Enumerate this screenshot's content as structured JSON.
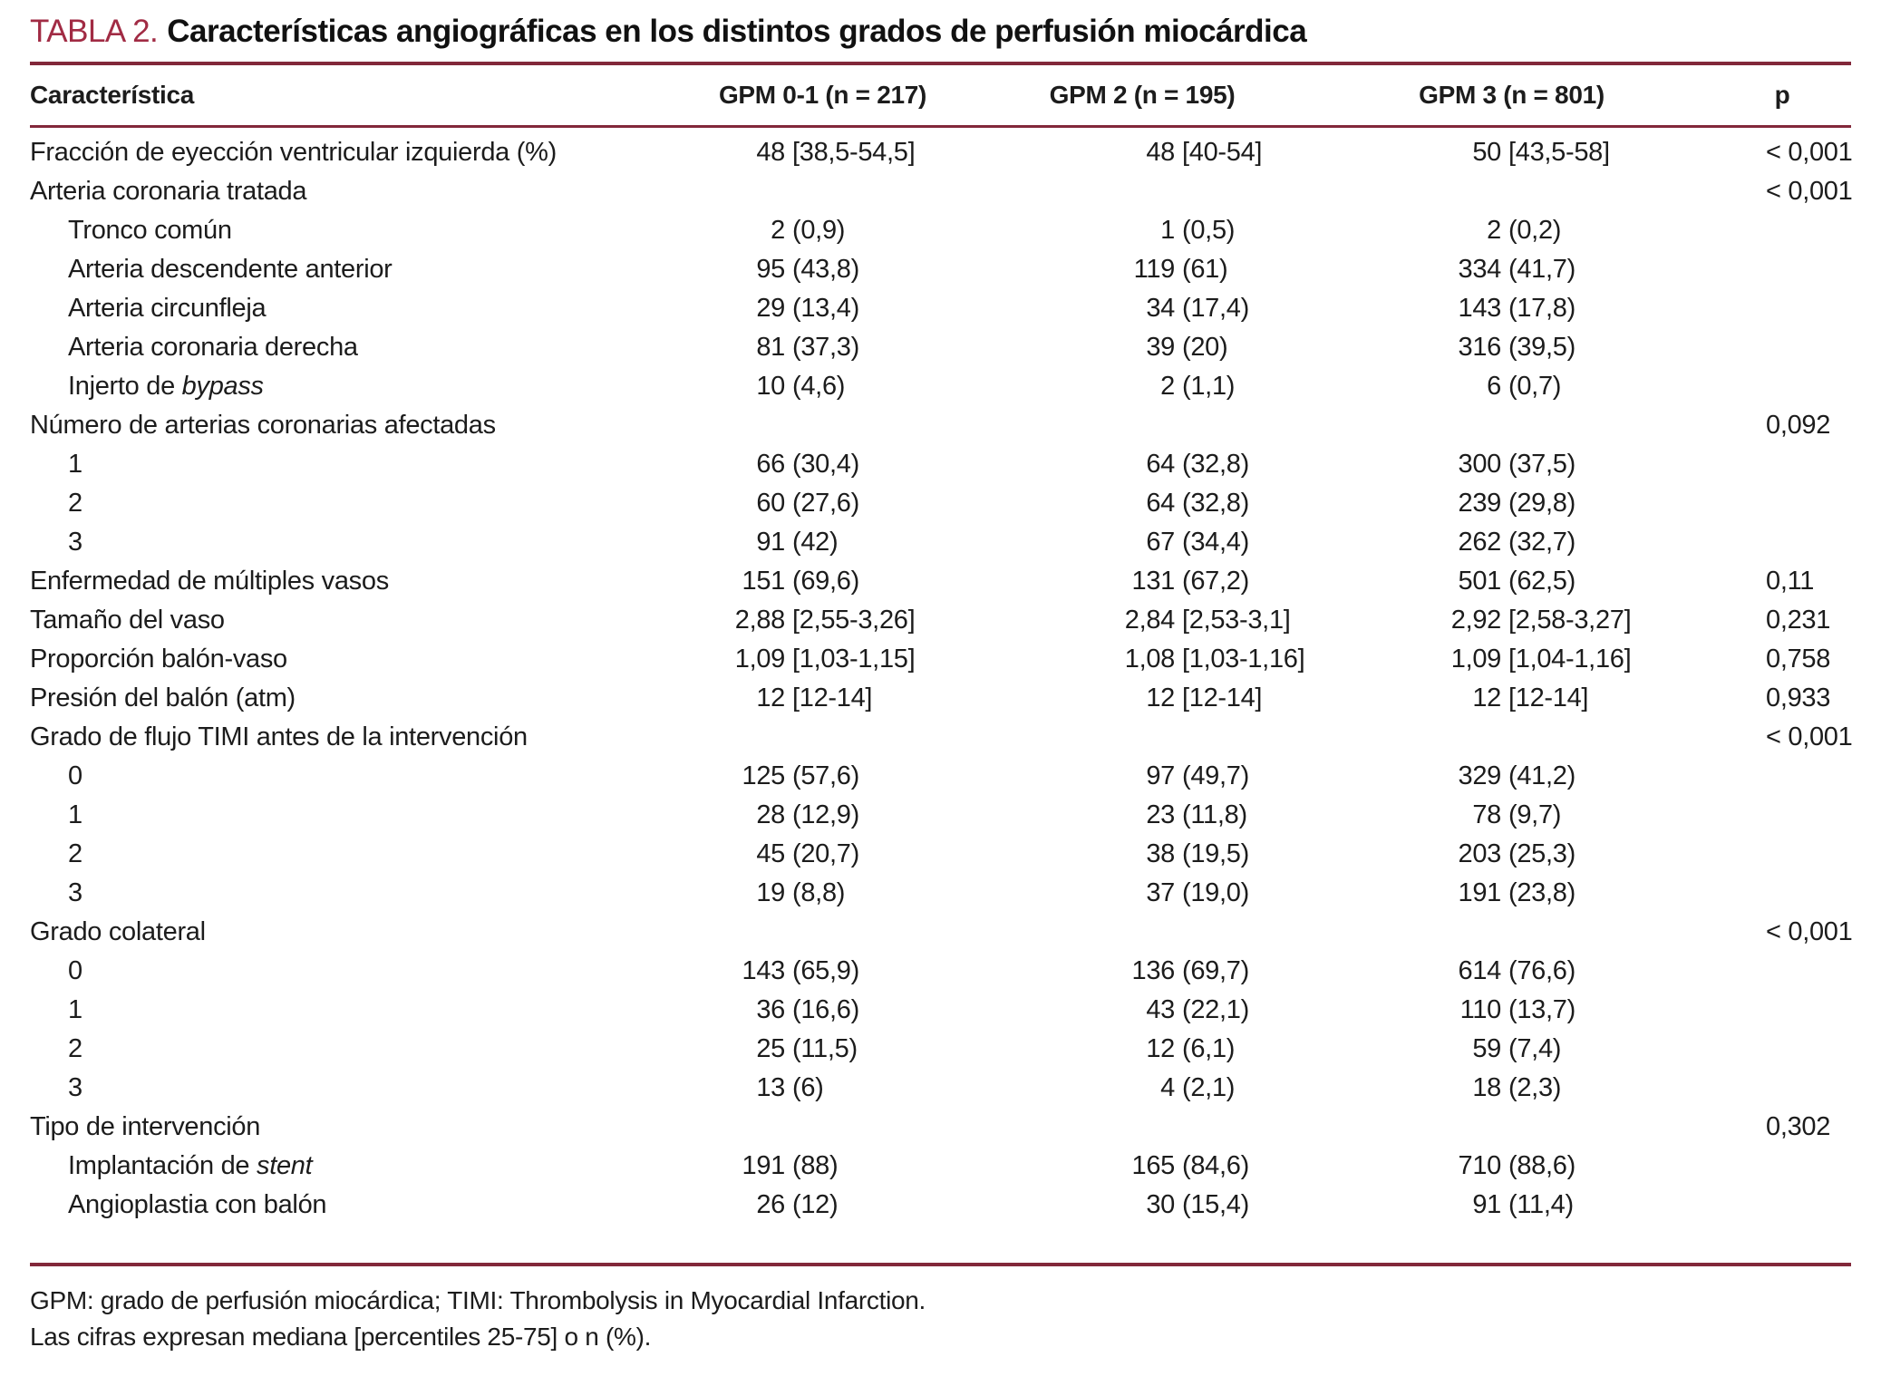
{
  "colors": {
    "accent": "#a12b44",
    "rule": "#82283a",
    "text": "#1c1c1c"
  },
  "title": {
    "tag": "TABLA 2.",
    "text": "Características angiográficas en los distintos grados de perfusión miocárdica"
  },
  "table": {
    "columns": [
      "Característica",
      "GPM 0-1 (n = 217)",
      "GPM 2 (n = 195)",
      "GPM 3 (n = 801)",
      "p"
    ],
    "rows": [
      {
        "label": "Fracción de eyección ventricular izquierda (%)",
        "indent": 0,
        "v1": [
          "48",
          "[38,5-54,5]"
        ],
        "v2": [
          "48",
          "[40-54]"
        ],
        "v3": [
          "50",
          "[43,5-58]"
        ],
        "p": "< 0,001"
      },
      {
        "label": "Arteria coronaria tratada",
        "indent": 0,
        "v1": null,
        "v2": null,
        "v3": null,
        "p": "< 0,001"
      },
      {
        "label": "Tronco común",
        "indent": 1,
        "v1": [
          "2",
          "(0,9)"
        ],
        "v2": [
          "1",
          "(0,5)"
        ],
        "v3": [
          "2",
          "(0,2)"
        ],
        "p": ""
      },
      {
        "label": "Arteria descendente anterior",
        "indent": 1,
        "v1": [
          "95",
          "(43,8)"
        ],
        "v2": [
          "119",
          "(61)"
        ],
        "v3": [
          "334",
          "(41,7)"
        ],
        "p": ""
      },
      {
        "label": "Arteria circunfleja",
        "indent": 1,
        "v1": [
          "29",
          "(13,4)"
        ],
        "v2": [
          "34",
          "(17,4)"
        ],
        "v3": [
          "143",
          "(17,8)"
        ],
        "p": ""
      },
      {
        "label": "Arteria coronaria derecha",
        "indent": 1,
        "v1": [
          "81",
          "(37,3)"
        ],
        "v2": [
          "39",
          "(20)"
        ],
        "v3": [
          "316",
          "(39,5)"
        ],
        "p": ""
      },
      {
        "label": "Injerto de ",
        "label_italic": "bypass",
        "indent": 1,
        "v1": [
          "10",
          "(4,6)"
        ],
        "v2": [
          "2",
          "(1,1)"
        ],
        "v3": [
          "6",
          "(0,7)"
        ],
        "p": ""
      },
      {
        "label": "Número de arterias coronarias afectadas",
        "indent": 0,
        "v1": null,
        "v2": null,
        "v3": null,
        "p": "0,092"
      },
      {
        "label": "1",
        "indent": 1,
        "v1": [
          "66",
          "(30,4)"
        ],
        "v2": [
          "64",
          "(32,8)"
        ],
        "v3": [
          "300",
          "(37,5)"
        ],
        "p": ""
      },
      {
        "label": "2",
        "indent": 1,
        "v1": [
          "60",
          "(27,6)"
        ],
        "v2": [
          "64",
          "(32,8)"
        ],
        "v3": [
          "239",
          "(29,8)"
        ],
        "p": ""
      },
      {
        "label": "3",
        "indent": 1,
        "v1": [
          "91",
          "(42)"
        ],
        "v2": [
          "67",
          "(34,4)"
        ],
        "v3": [
          "262",
          "(32,7)"
        ],
        "p": ""
      },
      {
        "label": "Enfermedad de múltiples vasos",
        "indent": 0,
        "v1": [
          "151",
          "(69,6)"
        ],
        "v2": [
          "131",
          "(67,2)"
        ],
        "v3": [
          "501",
          "(62,5)"
        ],
        "p": "0,11"
      },
      {
        "label": "Tamaño del vaso",
        "indent": 0,
        "v1": [
          "2,88",
          "[2,55-3,26]"
        ],
        "v2": [
          "2,84",
          "[2,53-3,1]"
        ],
        "v3": [
          "2,92",
          "[2,58-3,27]"
        ],
        "p": "0,231"
      },
      {
        "label": "Proporción balón-vaso",
        "indent": 0,
        "v1": [
          "1,09",
          "[1,03-1,15]"
        ],
        "v2": [
          "1,08",
          "[1,03-1,16]"
        ],
        "v3": [
          "1,09",
          "[1,04-1,16]"
        ],
        "p": "0,758"
      },
      {
        "label": "Presión del balón (atm)",
        "indent": 0,
        "v1": [
          "12",
          "[12-14]"
        ],
        "v2": [
          "12",
          "[12-14]"
        ],
        "v3": [
          "12",
          "[12-14]"
        ],
        "p": "0,933"
      },
      {
        "label": "Grado de flujo TIMI antes de la intervención",
        "indent": 0,
        "v1": null,
        "v2": null,
        "v3": null,
        "p": "< 0,001"
      },
      {
        "label": "0",
        "indent": 1,
        "v1": [
          "125",
          "(57,6)"
        ],
        "v2": [
          "97",
          "(49,7)"
        ],
        "v3": [
          "329",
          "(41,2)"
        ],
        "p": ""
      },
      {
        "label": "1",
        "indent": 1,
        "v1": [
          "28",
          "(12,9)"
        ],
        "v2": [
          "23",
          "(11,8)"
        ],
        "v3": [
          "78",
          "(9,7)"
        ],
        "p": ""
      },
      {
        "label": "2",
        "indent": 1,
        "v1": [
          "45",
          "(20,7)"
        ],
        "v2": [
          "38",
          "(19,5)"
        ],
        "v3": [
          "203",
          "(25,3)"
        ],
        "p": ""
      },
      {
        "label": "3",
        "indent": 1,
        "v1": [
          "19",
          "(8,8)"
        ],
        "v2": [
          "37",
          "(19,0)"
        ],
        "v3": [
          "191",
          "(23,8)"
        ],
        "p": ""
      },
      {
        "label": "Grado colateral",
        "indent": 0,
        "v1": null,
        "v2": null,
        "v3": null,
        "p": "< 0,001"
      },
      {
        "label": "0",
        "indent": 1,
        "v1": [
          "143",
          "(65,9)"
        ],
        "v2": [
          "136",
          "(69,7)"
        ],
        "v3": [
          "614",
          "(76,6)"
        ],
        "p": ""
      },
      {
        "label": "1",
        "indent": 1,
        "v1": [
          "36",
          "(16,6)"
        ],
        "v2": [
          "43",
          "(22,1)"
        ],
        "v3": [
          "110",
          "(13,7)"
        ],
        "p": ""
      },
      {
        "label": "2",
        "indent": 1,
        "v1": [
          "25",
          "(11,5)"
        ],
        "v2": [
          "12",
          "(6,1)"
        ],
        "v3": [
          "59",
          "(7,4)"
        ],
        "p": ""
      },
      {
        "label": "3",
        "indent": 1,
        "v1": [
          "13",
          "(6)"
        ],
        "v2": [
          "4",
          "(2,1)"
        ],
        "v3": [
          "18",
          "(2,3)"
        ],
        "p": ""
      },
      {
        "label": "Tipo de intervención",
        "indent": 0,
        "v1": null,
        "v2": null,
        "v3": null,
        "p": "0,302"
      },
      {
        "label": "Implantación de ",
        "label_italic": "stent",
        "indent": 1,
        "v1": [
          "191",
          "(88)"
        ],
        "v2": [
          "165",
          "(84,6)"
        ],
        "v3": [
          "710",
          "(88,6)"
        ],
        "p": ""
      },
      {
        "label": "Angioplastia con balón",
        "indent": 1,
        "v1": [
          "26",
          "(12)"
        ],
        "v2": [
          "30",
          "(15,4)"
        ],
        "v3": [
          "91",
          "(11,4)"
        ],
        "p": ""
      }
    ]
  },
  "footnotes": [
    "GPM: grado de perfusión miocárdica; TIMI: Thrombolysis in Myocardial Infarction.",
    "Las cifras expresan mediana [percentiles 25-75] o n (%)."
  ]
}
